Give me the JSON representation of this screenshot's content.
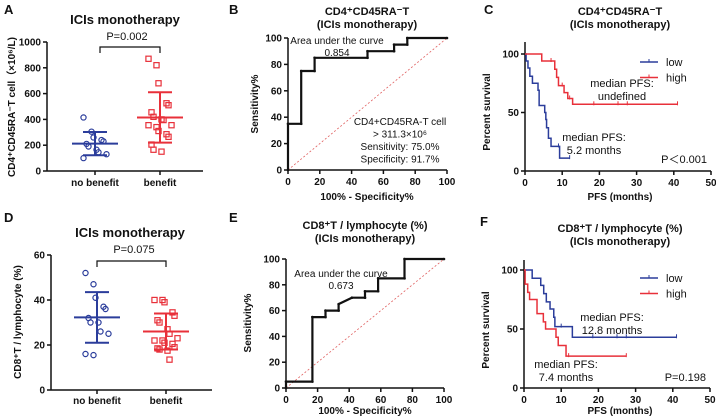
{
  "colors": {
    "blue": "#2b3d9b",
    "red": "#e8303a",
    "black": "#111111",
    "diag": "#e06060"
  },
  "chart_data": [
    {
      "panel": "A",
      "type": "scatter",
      "title": "ICIs monotherapy",
      "ylabel": "CD4⁺CD45RA⁻T cell（×10⁶/L)",
      "xlabel": "",
      "categories": [
        "no benefit",
        "benefit"
      ],
      "ylim": [
        0,
        1000
      ],
      "yticks": [
        0,
        200,
        400,
        600,
        800,
        1000
      ],
      "pvalue": "P=0.002",
      "series": [
        {
          "name": "no benefit",
          "marker": "circle",
          "color": "blue",
          "values": [
            415,
            305,
            260,
            240,
            230,
            210,
            190,
            165,
            145,
            130,
            100
          ],
          "mean": 212,
          "sd_low": 122,
          "sd_high": 302
        },
        {
          "name": "benefit",
          "marker": "square",
          "color": "red",
          "values": [
            870,
            820,
            680,
            525,
            510,
            455,
            420,
            400,
            395,
            355,
            355,
            340,
            310,
            285,
            265,
            205,
            165,
            150
          ],
          "mean": 415,
          "sd_low": 220,
          "sd_high": 610
        }
      ]
    },
    {
      "panel": "B",
      "type": "line",
      "title": "CD4⁺CD45RA⁻T",
      "subtitle": "(ICIs monotherapy)",
      "xlabel": "100% - Specificity%",
      "ylabel": "Sensitivity%",
      "xlim": [
        0,
        100
      ],
      "ylim": [
        0,
        100
      ],
      "xticks": [
        0,
        20,
        40,
        60,
        80,
        100
      ],
      "yticks": [
        0,
        20,
        40,
        60,
        80,
        100
      ],
      "auc_label": "Area under the curve",
      "auc_value": "0.854",
      "annotation": [
        "CD4+CD45RA-T cell",
        "> 311.3×10⁶",
        "Sensitivity: 75.0%",
        "Specificity: 91.7%"
      ],
      "roc": [
        [
          0,
          0
        ],
        [
          0,
          35
        ],
        [
          8.3,
          35
        ],
        [
          8.3,
          75
        ],
        [
          16.7,
          75
        ],
        [
          16.7,
          85
        ],
        [
          50,
          85
        ],
        [
          50,
          90
        ],
        [
          66.7,
          90
        ],
        [
          66.7,
          95
        ],
        [
          75,
          95
        ],
        [
          75,
          100
        ],
        [
          100,
          100
        ]
      ]
    },
    {
      "panel": "C",
      "type": "line",
      "title": "CD4⁺CD45RA⁻T",
      "subtitle": "(ICIs monotherapy)",
      "xlabel": "PFS (months)",
      "ylabel": "Percent survival",
      "xlim": [
        0,
        50
      ],
      "ylim": [
        0,
        100
      ],
      "xticks": [
        0,
        10,
        20,
        30,
        40,
        50
      ],
      "yticks": [
        0,
        50,
        100
      ],
      "legend": [
        "low",
        "high"
      ],
      "median_high": [
        "median PFS:",
        "undefined"
      ],
      "median_low": [
        "median PFS:",
        "5.2 months"
      ],
      "pvalue": "P＜0.001",
      "series": [
        {
          "name": "low",
          "color": "blue",
          "steps": [
            [
              0,
              100
            ],
            [
              0.3,
              94
            ],
            [
              0.8,
              88
            ],
            [
              1.3,
              81
            ],
            [
              2,
              75
            ],
            [
              3.5,
              69
            ],
            [
              3.8,
              56
            ],
            [
              5.3,
              50
            ],
            [
              5.6,
              44
            ],
            [
              5.8,
              37
            ],
            [
              6.3,
              28
            ],
            [
              7,
              21
            ],
            [
              9.3,
              11
            ],
            [
              12,
              11
            ]
          ],
          "censored": [
            9,
            12
          ]
        },
        {
          "name": "high",
          "color": "red",
          "steps": [
            [
              0,
              100
            ],
            [
              4.5,
              94
            ],
            [
              8,
              87
            ],
            [
              8.5,
              80
            ],
            [
              9,
              73
            ],
            [
              10.5,
              67
            ],
            [
              11.5,
              62
            ],
            [
              12.8,
              57
            ],
            [
              41,
              57
            ]
          ],
          "censored": [
            7,
            10,
            12,
            18.5,
            25,
            27.5,
            41
          ]
        }
      ]
    },
    {
      "panel": "D",
      "type": "scatter",
      "title": "ICIs monotherapy",
      "ylabel": "CD8⁺T / lymphocyte (%)",
      "xlabel": "",
      "categories": [
        "no benefit",
        "benefit"
      ],
      "ylim": [
        0,
        60
      ],
      "yticks": [
        0,
        20,
        40,
        60
      ],
      "pvalue": "P=0.075",
      "series": [
        {
          "name": "no benefit",
          "marker": "circle",
          "color": "blue",
          "values": [
            52,
            47,
            41,
            37,
            36,
            32,
            30,
            30,
            26,
            25,
            16,
            15.5
          ],
          "mean": 32.3,
          "sd_low": 21,
          "sd_high": 43.5
        },
        {
          "name": "benefit",
          "marker": "square",
          "color": "red",
          "values": [
            40,
            40,
            39,
            34.5,
            33,
            31,
            30,
            27,
            25,
            23,
            22,
            22,
            21,
            20.5,
            19,
            18.5,
            18,
            17.5,
            13.5
          ],
          "mean": 26,
          "sd_low": 18,
          "sd_high": 34
        }
      ]
    },
    {
      "panel": "E",
      "type": "line",
      "title": "CD8⁺T / lymphocyte (%)",
      "subtitle": "(ICIs monotherapy)",
      "xlabel": "100% - Specificity%",
      "ylabel": "Sensitivity%",
      "xlim": [
        0,
        100
      ],
      "ylim": [
        0,
        100
      ],
      "xticks": [
        0,
        20,
        40,
        60,
        80,
        100
      ],
      "yticks": [
        0,
        20,
        40,
        60,
        80,
        100
      ],
      "auc_label": "Area under the curve",
      "auc_value": "0.673",
      "roc": [
        [
          0,
          0
        ],
        [
          0,
          5
        ],
        [
          16.7,
          5
        ],
        [
          16.7,
          55
        ],
        [
          25,
          55
        ],
        [
          25,
          60
        ],
        [
          33.3,
          60
        ],
        [
          33.3,
          65
        ],
        [
          41.7,
          70
        ],
        [
          50,
          70
        ],
        [
          50,
          75
        ],
        [
          58.3,
          75
        ],
        [
          58.3,
          85
        ],
        [
          75,
          85
        ],
        [
          75,
          100
        ],
        [
          100,
          100
        ]
      ]
    },
    {
      "panel": "F",
      "type": "line",
      "title": "CD8⁺T / lymphocyte (%)",
      "subtitle": "(ICIs monotherapy)",
      "xlabel": "PFS (months)",
      "ylabel": "Percent survival",
      "xlim": [
        0,
        50
      ],
      "ylim": [
        0,
        100
      ],
      "xticks": [
        0,
        10,
        20,
        30,
        40,
        50
      ],
      "yticks": [
        0,
        50,
        100
      ],
      "legend": [
        "low",
        "high"
      ],
      "median_low": [
        "median PFS:",
        "12.8 months"
      ],
      "median_high": [
        "median PFS:",
        "7.4 months"
      ],
      "pvalue": "P=0.198",
      "series": [
        {
          "name": "low",
          "color": "blue",
          "steps": [
            [
              0,
              100
            ],
            [
              2.2,
              93
            ],
            [
              4.5,
              87
            ],
            [
              5.3,
              80
            ],
            [
              6,
              73
            ],
            [
              7,
              67
            ],
            [
              8,
              60
            ],
            [
              8.3,
              52
            ],
            [
              13,
              43
            ],
            [
              41,
              43
            ]
          ],
          "censored": [
            10,
            18.5,
            25,
            27.5,
            41
          ]
        },
        {
          "name": "high",
          "color": "red",
          "steps": [
            [
              0,
              100
            ],
            [
              0.3,
              88
            ],
            [
              1,
              81
            ],
            [
              1.5,
              75
            ],
            [
              3.5,
              63
            ],
            [
              5.2,
              56
            ],
            [
              5.8,
              50
            ],
            [
              8.6,
              43
            ],
            [
              9.2,
              36
            ],
            [
              11.3,
              27
            ],
            [
              27.5,
              27
            ]
          ],
          "censored": [
            12,
            27.5
          ]
        }
      ]
    }
  ]
}
